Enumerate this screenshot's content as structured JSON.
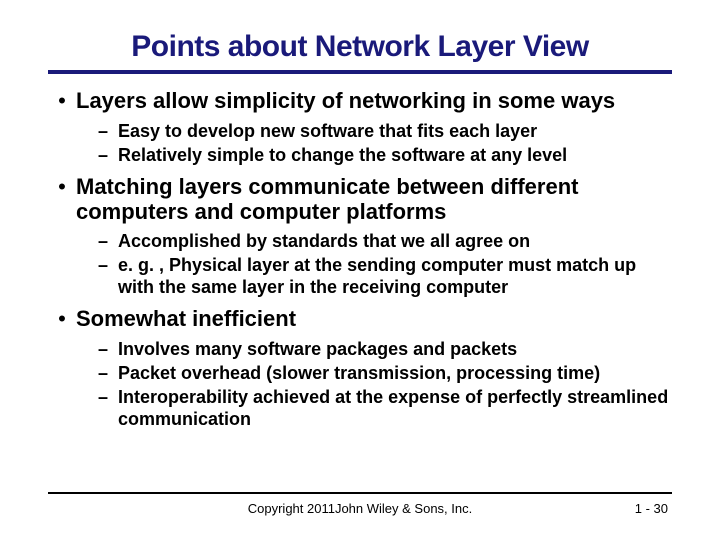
{
  "title": "Points about Network Layer View",
  "title_color": "#1a1a7a",
  "underline_color": "#1a1a7a",
  "background_color": "#ffffff",
  "text_color": "#000000",
  "fonts": {
    "title_size": 30,
    "l1_size": 22,
    "l2_size": 18,
    "footer_size": 13
  },
  "bullets": [
    {
      "text": "Layers allow simplicity of networking in some ways",
      "sub": [
        "Easy to develop new software that fits each layer",
        "Relatively simple to change the software at any level"
      ]
    },
    {
      "text": "Matching layers communicate between different computers and computer platforms",
      "sub": [
        "Accomplished by standards that we all agree on",
        "e. g. ,  Physical layer at the sending computer must match up with the same layer in the receiving computer"
      ]
    },
    {
      "text": "Somewhat inefficient",
      "sub": [
        "Involves many software packages and packets",
        "Packet overhead (slower transmission, processing time)",
        "Interoperability achieved at the expense of perfectly streamlined communication"
      ]
    }
  ],
  "copyright": "Copyright 2011John Wiley & Sons, Inc.",
  "page_number": "1 - 30"
}
